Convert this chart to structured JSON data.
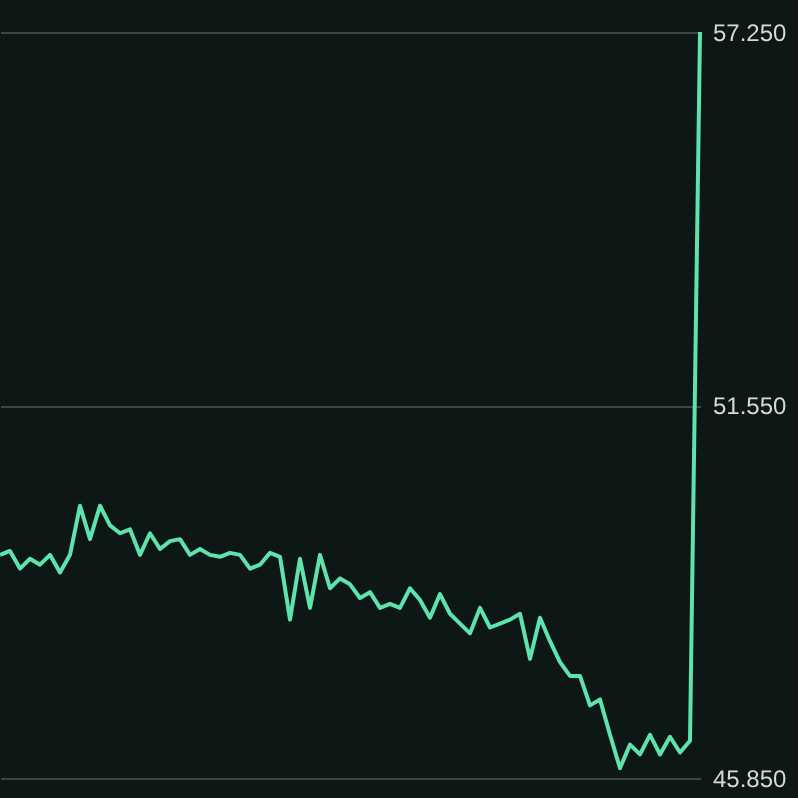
{
  "chart_data": {
    "type": "line",
    "categories": [
      null,
      null,
      null,
      null,
      null,
      null,
      null,
      null,
      null,
      null,
      null,
      null,
      null,
      null,
      null,
      null,
      null,
      null,
      null,
      null,
      null,
      null,
      null,
      null,
      null,
      null,
      null,
      null,
      null,
      null,
      null,
      null,
      null,
      null,
      null,
      null,
      null,
      null,
      null,
      null,
      null,
      null,
      null,
      null,
      null,
      null,
      null,
      null,
      null,
      null,
      null,
      null,
      null,
      null,
      null,
      null,
      null,
      null,
      null,
      null,
      null,
      null,
      null,
      null,
      null,
      null,
      null,
      null,
      null,
      null,
      null
    ],
    "series": [
      {
        "color": "#5ee3ad",
        "values": [
          49.26,
          49.32,
          49.05,
          49.2,
          49.11,
          49.26,
          48.99,
          49.26,
          50.01,
          49.5,
          50.01,
          49.71,
          49.59,
          49.65,
          49.26,
          49.59,
          49.35,
          49.47,
          49.5,
          49.26,
          49.35,
          49.26,
          49.23,
          49.29,
          49.26,
          49.05,
          49.11,
          49.29,
          49.23,
          48.27,
          49.2,
          48.45,
          49.26,
          48.75,
          48.9,
          48.81,
          48.6,
          48.69,
          48.45,
          48.51,
          48.45,
          48.75,
          48.57,
          48.3,
          48.66,
          48.36,
          48.21,
          48.06,
          48.45,
          48.15,
          48.21,
          48.27,
          48.36,
          47.67,
          48.3,
          47.94,
          47.62,
          47.41,
          47.41,
          46.96,
          47.05,
          46.51,
          46.0,
          46.36,
          46.21,
          46.51,
          46.21,
          46.48,
          46.24,
          46.42,
          57.25
        ]
      }
    ],
    "ylim": [
      45.85,
      57.25
    ],
    "yticks": [
      {
        "value": 45.85,
        "label": "45.850"
      },
      {
        "value": 51.55,
        "label": "51.550"
      },
      {
        "value": 57.25,
        "label": "57.250"
      }
    ],
    "grid": "y",
    "tick_labels": "y",
    "line_style": "solid",
    "marker": "none"
  }
}
